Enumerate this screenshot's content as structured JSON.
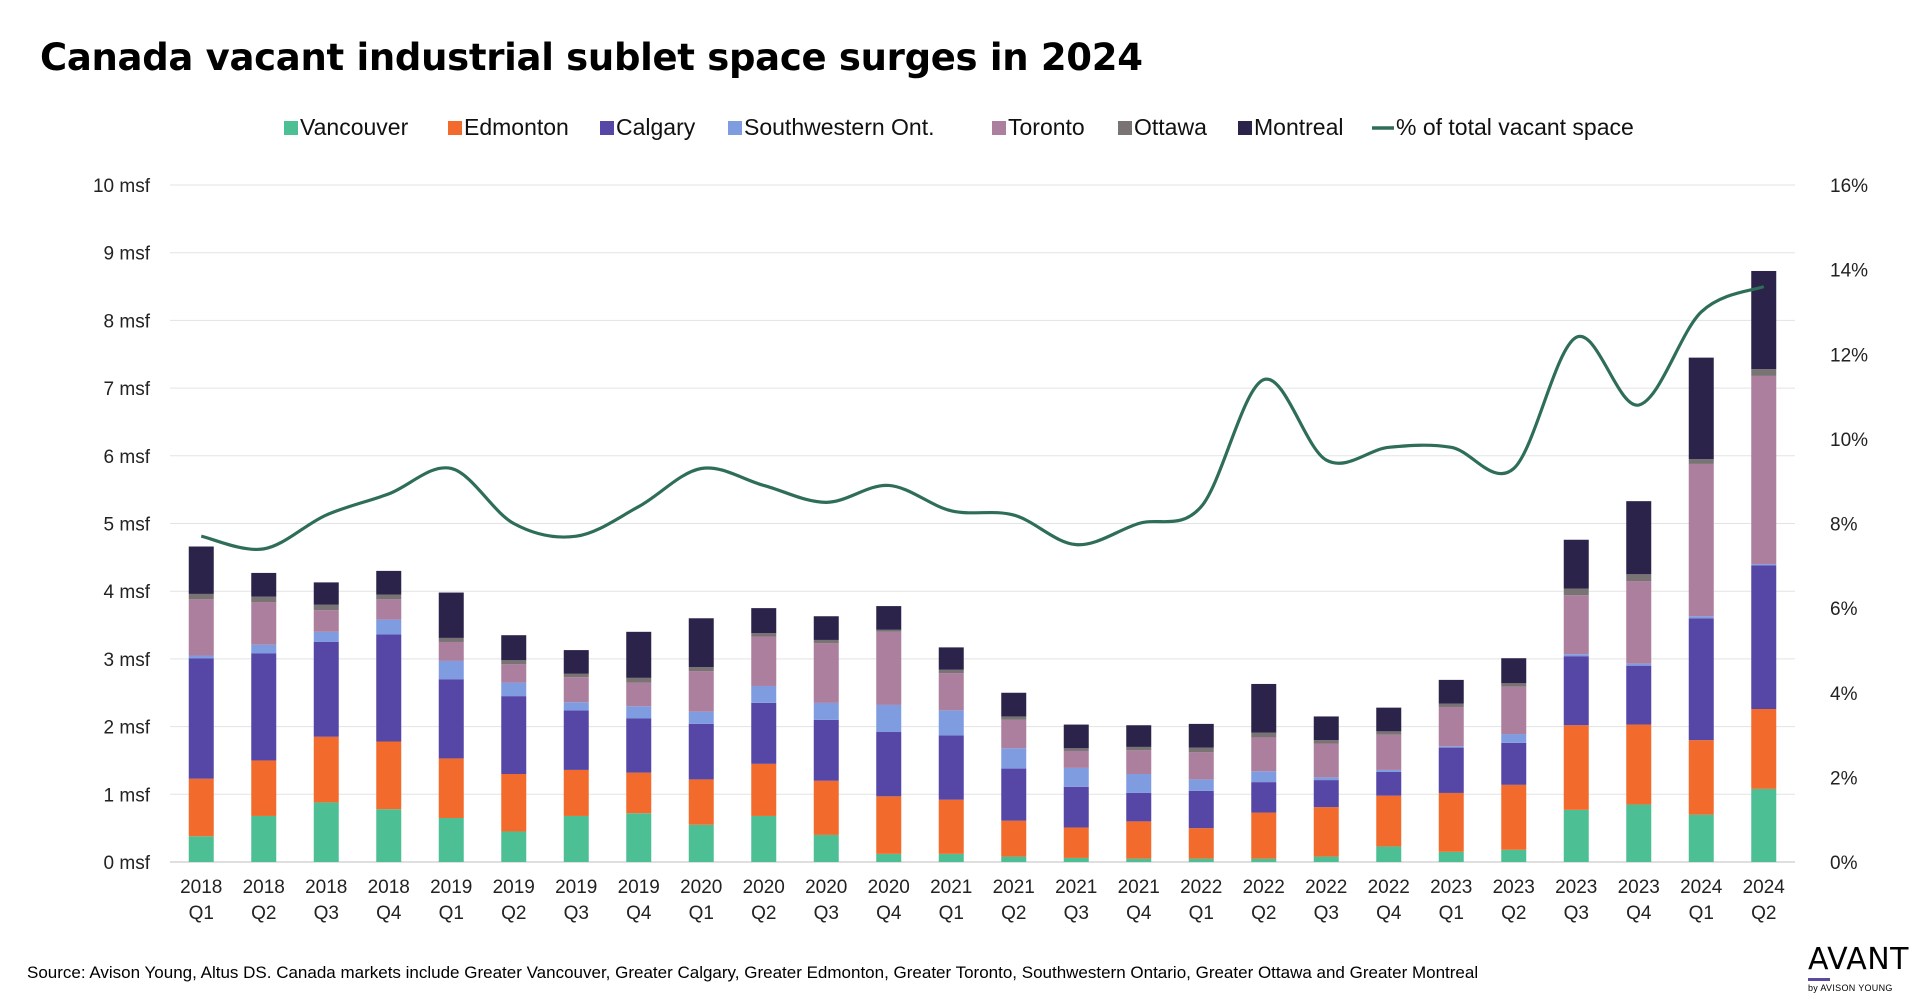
{
  "title": "Canada vacant industrial sublet space surges in 2024",
  "source": "Source: Avison Young, Altus DS. Canada markets include Greater Vancouver, Greater Calgary, Greater Edmonton, Greater Toronto, Southwestern Ontario, Greater Ottawa and Greater Montreal",
  "logo": {
    "main": "AVANT",
    "sub": "by AVISON YOUNG"
  },
  "chart_data": {
    "type": "bar",
    "stacked": true,
    "title": "Canada vacant industrial sublet space surges in 2024",
    "categories": [
      "2018 Q1",
      "2018 Q2",
      "2018 Q3",
      "2018 Q4",
      "2019 Q1",
      "2019 Q2",
      "2019 Q3",
      "2019 Q4",
      "2020 Q1",
      "2020 Q2",
      "2020 Q3",
      "2020 Q4",
      "2021 Q1",
      "2021 Q2",
      "2021 Q3",
      "2021 Q4",
      "2022 Q1",
      "2022 Q2",
      "2022 Q3",
      "2022 Q4",
      "2023 Q1",
      "2023 Q2",
      "2023 Q3",
      "2023 Q4",
      "2024 Q1",
      "2024 Q2"
    ],
    "category_lines": [
      [
        "2018",
        "Q1"
      ],
      [
        "2018",
        "Q2"
      ],
      [
        "2018",
        "Q3"
      ],
      [
        "2018",
        "Q4"
      ],
      [
        "2019",
        "Q1"
      ],
      [
        "2019",
        "Q2"
      ],
      [
        "2019",
        "Q3"
      ],
      [
        "2019",
        "Q4"
      ],
      [
        "2020",
        "Q1"
      ],
      [
        "2020",
        "Q2"
      ],
      [
        "2020",
        "Q3"
      ],
      [
        "2020",
        "Q4"
      ],
      [
        "2021",
        "Q1"
      ],
      [
        "2021",
        "Q2"
      ],
      [
        "2021",
        "Q3"
      ],
      [
        "2021",
        "Q4"
      ],
      [
        "2022",
        "Q1"
      ],
      [
        "2022",
        "Q2"
      ],
      [
        "2022",
        "Q3"
      ],
      [
        "2022",
        "Q4"
      ],
      [
        "2023",
        "Q1"
      ],
      [
        "2023",
        "Q2"
      ],
      [
        "2023",
        "Q3"
      ],
      [
        "2023",
        "Q4"
      ],
      [
        "2024",
        "Q1"
      ],
      [
        "2024",
        "Q2"
      ]
    ],
    "series": [
      {
        "name": "Vancouver",
        "color": "#4dbf95",
        "values": [
          0.38,
          0.68,
          0.88,
          0.78,
          0.65,
          0.45,
          0.68,
          0.72,
          0.55,
          0.68,
          0.4,
          0.12,
          0.12,
          0.08,
          0.06,
          0.05,
          0.05,
          0.05,
          0.08,
          0.23,
          0.15,
          0.18,
          0.77,
          0.85,
          0.7,
          1.08
        ]
      },
      {
        "name": "Edmonton",
        "color": "#f26b2d",
        "values": [
          0.85,
          0.82,
          0.97,
          1.0,
          0.88,
          0.85,
          0.68,
          0.6,
          0.67,
          0.77,
          0.8,
          0.85,
          0.8,
          0.53,
          0.45,
          0.55,
          0.45,
          0.68,
          0.73,
          0.75,
          0.87,
          0.96,
          1.25,
          1.18,
          1.1,
          1.18
        ]
      },
      {
        "name": "Calgary",
        "color": "#5646a6",
        "values": [
          1.78,
          1.58,
          1.4,
          1.58,
          1.17,
          1.15,
          0.88,
          0.8,
          0.82,
          0.9,
          0.9,
          0.95,
          0.95,
          0.77,
          0.6,
          0.42,
          0.55,
          0.45,
          0.4,
          0.35,
          0.67,
          0.62,
          1.02,
          0.87,
          1.8,
          2.12
        ]
      },
      {
        "name": "Southwestern Ont.",
        "color": "#7f9ce0",
        "values": [
          0.04,
          0.13,
          0.15,
          0.22,
          0.27,
          0.2,
          0.12,
          0.18,
          0.18,
          0.25,
          0.25,
          0.4,
          0.37,
          0.3,
          0.28,
          0.28,
          0.17,
          0.16,
          0.04,
          0.03,
          0.02,
          0.13,
          0.03,
          0.03,
          0.03,
          0.02
        ]
      },
      {
        "name": "Toronto",
        "color": "#ad7f9e",
        "values": [
          0.83,
          0.63,
          0.32,
          0.3,
          0.28,
          0.27,
          0.37,
          0.35,
          0.6,
          0.73,
          0.88,
          1.08,
          0.55,
          0.42,
          0.25,
          0.35,
          0.4,
          0.5,
          0.5,
          0.52,
          0.58,
          0.7,
          0.87,
          1.22,
          2.25,
          2.78
        ]
      },
      {
        "name": "Ottawa",
        "color": "#7a7374",
        "values": [
          0.08,
          0.08,
          0.08,
          0.07,
          0.06,
          0.06,
          0.05,
          0.07,
          0.06,
          0.05,
          0.05,
          0.03,
          0.05,
          0.05,
          0.04,
          0.05,
          0.07,
          0.07,
          0.05,
          0.05,
          0.05,
          0.05,
          0.1,
          0.1,
          0.07,
          0.1
        ]
      },
      {
        "name": "Montreal",
        "color": "#2b2349",
        "values": [
          0.7,
          0.35,
          0.33,
          0.35,
          0.67,
          0.37,
          0.35,
          0.68,
          0.72,
          0.37,
          0.35,
          0.35,
          0.33,
          0.35,
          0.35,
          0.32,
          0.35,
          0.72,
          0.35,
          0.35,
          0.35,
          0.37,
          0.72,
          1.08,
          1.5,
          1.45
        ]
      }
    ],
    "line": {
      "name": "% of total vacant space",
      "color": "#2e6e57",
      "axis": "right",
      "values": [
        7.7,
        7.4,
        8.2,
        8.7,
        9.3,
        8.0,
        7.7,
        8.4,
        9.3,
        8.9,
        8.5,
        8.9,
        8.3,
        8.2,
        7.5,
        8.0,
        8.4,
        11.4,
        9.5,
        9.8,
        9.8,
        9.3,
        12.4,
        10.8,
        13.0,
        13.6
      ]
    },
    "ylabel_left_ticks": [
      "0 msf",
      "1 msf",
      "2 msf",
      "3 msf",
      "4 msf",
      "5 msf",
      "6 msf",
      "7 msf",
      "8 msf",
      "9 msf",
      "10 msf"
    ],
    "ylabel_right_ticks": [
      "0%",
      "2%",
      "4%",
      "6%",
      "8%",
      "10%",
      "12%",
      "14%",
      "16%"
    ],
    "ylim": [
      0,
      10
    ],
    "ylim_right": [
      0,
      16
    ],
    "grid": true,
    "legend_position": "top-center"
  }
}
